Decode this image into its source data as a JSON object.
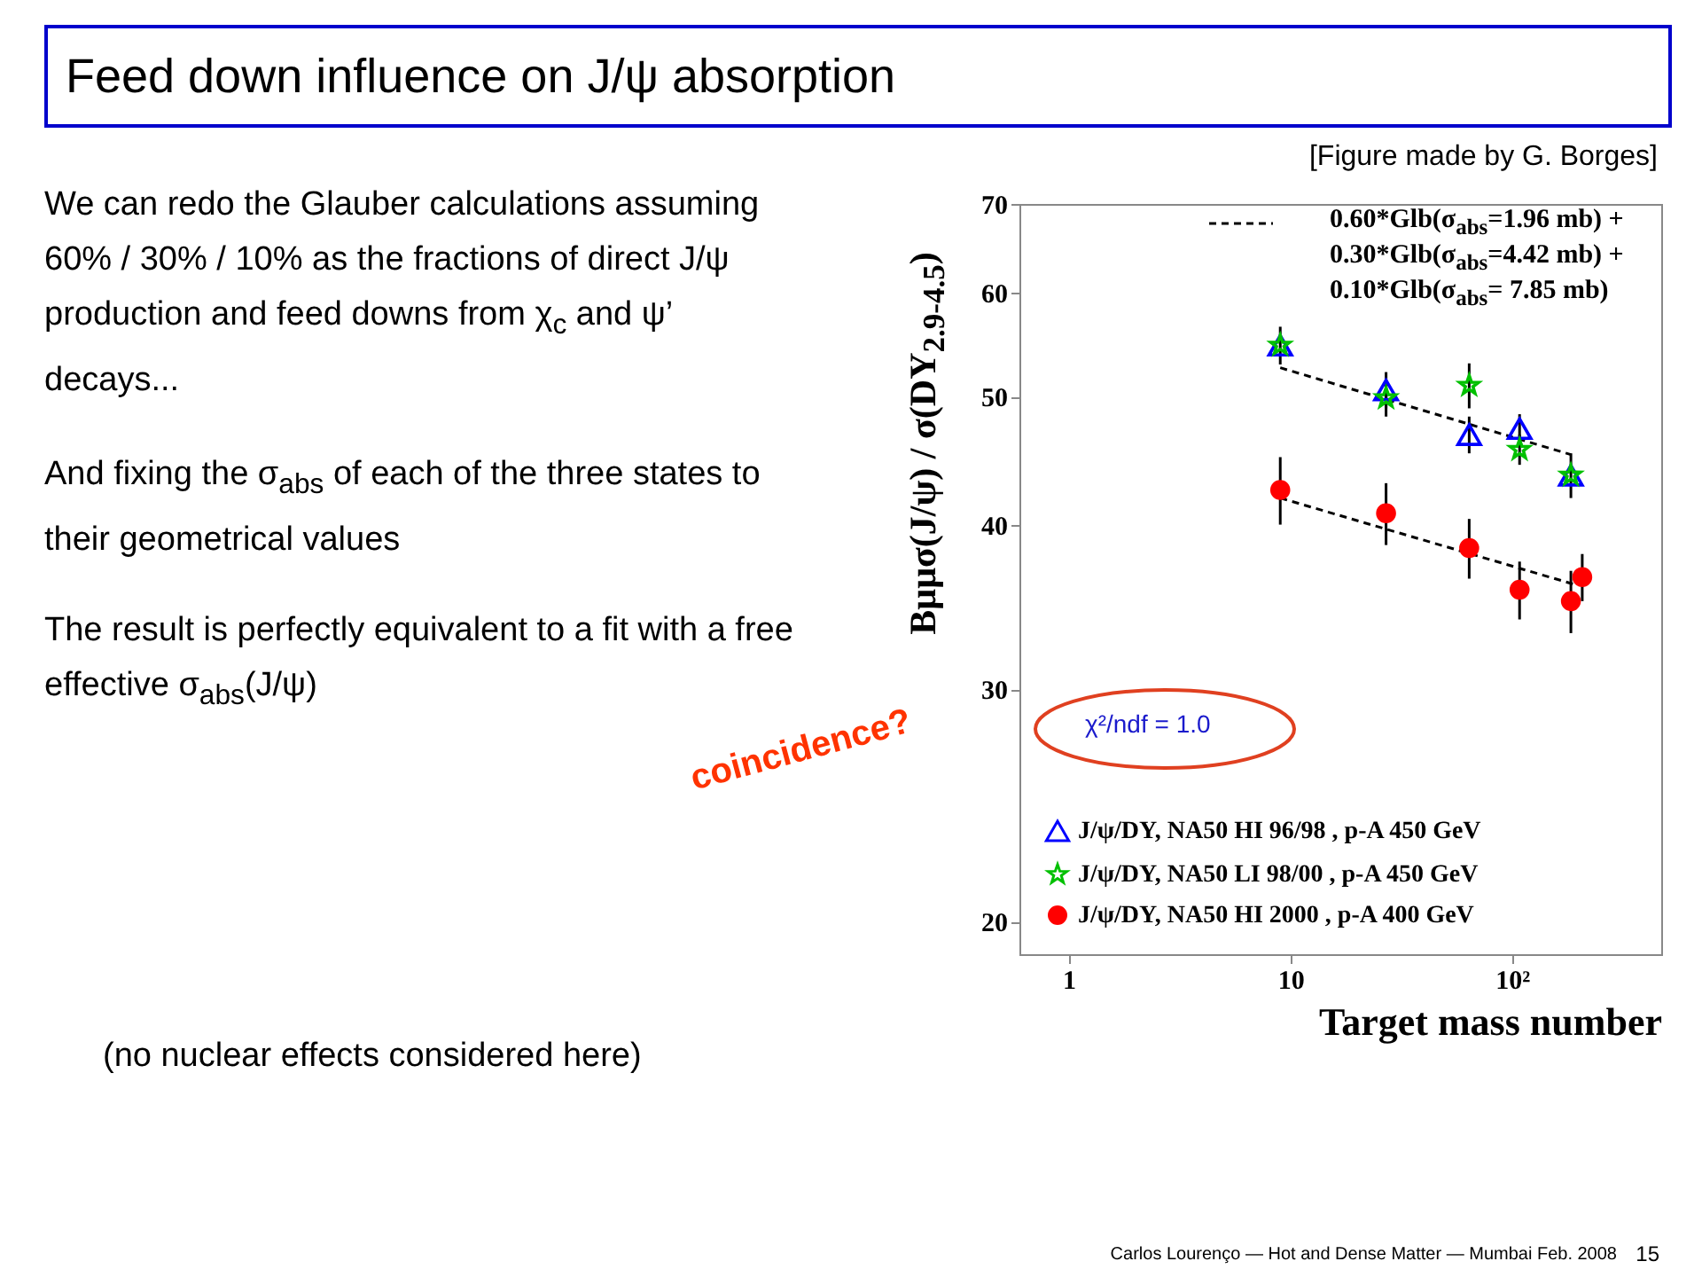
{
  "chart_data": {
    "type": "scatter",
    "title": "Feed down influence on J/ψ absorption",
    "ylabel": "Bμμσ(J/ψ) / σ(DY$_{2.9-4.5}$)",
    "xlabel": "Target mass number",
    "log": "xy",
    "xlim": [
      0.6,
      470
    ],
    "xticks": [
      1,
      10,
      {
        "value": 100,
        "label": "10²"
      }
    ],
    "ylim": [
      18.9,
      70
    ],
    "yticks": [
      20,
      30,
      40,
      50,
      60,
      70
    ],
    "legend": "bottom left",
    "series": [
      {
        "name": "J/ψ/DY, NA50 HI 96/98 , p-A 450 GeV",
        "marker": "triangle",
        "color": "#0000ff",
        "x": [
          9,
          27,
          64,
          108,
          184
        ],
        "values": [
          54.7,
          50.6,
          46.8,
          47.3,
          43.6
        ],
        "errors": [
          1.8,
          1.6,
          1.5,
          1.2,
          1.7
        ]
      },
      {
        "name": "J/ψ/DY, NA50 LI 98/00 , p-A 450 GeV",
        "marker": "star",
        "color": "#00c000",
        "x": [
          9,
          27,
          64,
          108,
          184
        ],
        "values": [
          54.7,
          49.9,
          51.0,
          45.6,
          43.6
        ],
        "errors": [
          null,
          1.6,
          2,
          1.2,
          null
        ]
      },
      {
        "name": "J/ψ/DY, NA50 HI 2000 , p-A 400 GeV",
        "marker": "circle",
        "color": "#ff0000",
        "x": [
          9,
          27,
          64,
          108,
          184,
          207
        ],
        "values": [
          42.5,
          40.8,
          38.4,
          35.7,
          35.0,
          36.5
        ],
        "errors": [
          2.5,
          2.2,
          2,
          1.8,
          1.9,
          1.5
        ]
      },
      {
        "name": "0.60*Glb(σ$_{abs}$=1.96 mb) +\n0.30*Glb(σ$_{abs}$=4.42 mb) +\n0.10*Glb(σ$_{abs}$= 7.85 mb)",
        "type": "line",
        "line_style": "dashed",
        "color": "#000000",
        "x": [
          9,
          184
        ],
        "values": [
          52.6,
          45.2
        ]
      },
      {
        "type": "line",
        "line_style": "dashed",
        "color": "#000000",
        "x": [
          9,
          195
        ],
        "values": [
          41.9,
          36.0
        ]
      }
    ],
    "annotations": [
      "[Figure made by G. Borges]",
      "We can redo the Glauber calculations assuming 60% / 30% / 10% as the fractions of direct J/ψ production and feed downs from χ$_{c}$ and ψ’ decays...",
      "And fixing the σ$_{abs}$ of each of the three states to their geometrical values",
      "The result is perfectly equivalent to a fit with a free effective σ$_{abs}$(J/ψ)",
      "coincidence?",
      "χ²/ndf = 1.0",
      "(no nuclear effects considered here)",
      "Carlos Lourenço — Hot and Dense Matter — Mumbai Feb. 2008",
      "15"
    ]
  }
}
